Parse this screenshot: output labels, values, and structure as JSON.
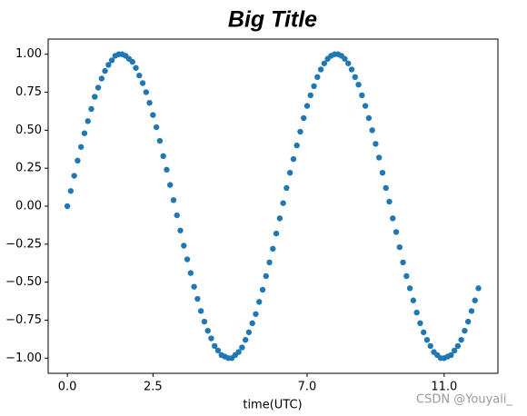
{
  "chart_data": {
    "type": "scatter",
    "title": "Big Title",
    "xlabel": "time(UTC)",
    "watermark": "CSDN @Youyali_",
    "color": "#1f77b4",
    "x": [
      0.0,
      0.1,
      0.2,
      0.3,
      0.4,
      0.5,
      0.6,
      0.7,
      0.8,
      0.9,
      1.0,
      1.1,
      1.2,
      1.3,
      1.4,
      1.5,
      1.6,
      1.7,
      1.8,
      1.9,
      2.0,
      2.1,
      2.2,
      2.3,
      2.4,
      2.5,
      2.6,
      2.7,
      2.8,
      2.9,
      3.0,
      3.1,
      3.2,
      3.3,
      3.4,
      3.5,
      3.6,
      3.7,
      3.8,
      3.9,
      4.0,
      4.1,
      4.2,
      4.3,
      4.4,
      4.5,
      4.6,
      4.7,
      4.8,
      4.9,
      5.0,
      5.1,
      5.2,
      5.3,
      5.4,
      5.5,
      5.6,
      5.7,
      5.8,
      5.9,
      6.0,
      6.1,
      6.2,
      6.3,
      6.4,
      6.5,
      6.6,
      6.7,
      6.8,
      6.9,
      7.0,
      7.1,
      7.2,
      7.3,
      7.4,
      7.5,
      7.6,
      7.7,
      7.8,
      7.9,
      8.0,
      8.1,
      8.2,
      8.3,
      8.4,
      8.5,
      8.6,
      8.7,
      8.8,
      8.9,
      9.0,
      9.1,
      9.2,
      9.3,
      9.4,
      9.5,
      9.6,
      9.7,
      9.8,
      9.9,
      10.0,
      10.1,
      10.2,
      10.3,
      10.4,
      10.5,
      10.6,
      10.7,
      10.8,
      10.9,
      11.0,
      11.1,
      11.2,
      11.3,
      11.4,
      11.5,
      11.6,
      11.7,
      11.8,
      11.9,
      12.0
    ],
    "values": [
      0,
      0.1,
      0.2,
      0.3,
      0.39,
      0.48,
      0.56,
      0.64,
      0.72,
      0.78,
      0.84,
      0.89,
      0.93,
      0.96,
      0.99,
      1.0,
      1.0,
      0.99,
      0.97,
      0.95,
      0.91,
      0.86,
      0.81,
      0.75,
      0.68,
      0.6,
      0.52,
      0.43,
      0.33,
      0.24,
      0.14,
      0.04,
      -0.06,
      -0.16,
      -0.26,
      -0.35,
      -0.44,
      -0.53,
      -0.61,
      -0.69,
      -0.76,
      -0.82,
      -0.87,
      -0.92,
      -0.95,
      -0.98,
      -0.99,
      -1.0,
      -1.0,
      -0.98,
      -0.96,
      -0.93,
      -0.88,
      -0.83,
      -0.77,
      -0.71,
      -0.63,
      -0.55,
      -0.46,
      -0.37,
      -0.28,
      -0.18,
      -0.08,
      0.02,
      0.12,
      0.22,
      0.31,
      0.4,
      0.49,
      0.58,
      0.66,
      0.73,
      0.79,
      0.85,
      0.9,
      0.94,
      0.97,
      0.99,
      1.0,
      1.0,
      0.99,
      0.97,
      0.94,
      0.9,
      0.85,
      0.8,
      0.73,
      0.66,
      0.58,
      0.5,
      0.41,
      0.32,
      0.22,
      0.12,
      0.03,
      -0.08,
      -0.17,
      -0.27,
      -0.37,
      -0.46,
      -0.54,
      -0.62,
      -0.7,
      -0.77,
      -0.83,
      -0.88,
      -0.92,
      -0.96,
      -0.98,
      -1.0,
      -1.0,
      -0.99,
      -0.98,
      -0.95,
      -0.92,
      -0.88,
      -0.82,
      -0.76,
      -0.69,
      -0.62,
      -0.54
    ],
    "xlim": [
      -0.56,
      12.57
    ],
    "ylim": [
      -1.1,
      1.1
    ],
    "xticks": [
      {
        "value": 0,
        "label": "0.0"
      },
      2.5,
      {
        "value": 7,
        "label": "7.0"
      },
      {
        "value": 11,
        "label": "11.0"
      }
    ],
    "yticks": [
      {
        "value": -1,
        "label": "−1.00"
      },
      {
        "value": -0.75,
        "label": "−0.75"
      },
      {
        "value": -0.5,
        "label": "−0.50"
      },
      {
        "value": -0.25,
        "label": "−0.25"
      },
      {
        "value": 0,
        "label": "0.00"
      },
      {
        "value": 0.25,
        "label": "0.25"
      },
      {
        "value": 0.5,
        "label": "0.50"
      },
      {
        "value": 0.75,
        "label": "0.75"
      },
      {
        "value": 1,
        "label": "1.00"
      }
    ]
  }
}
